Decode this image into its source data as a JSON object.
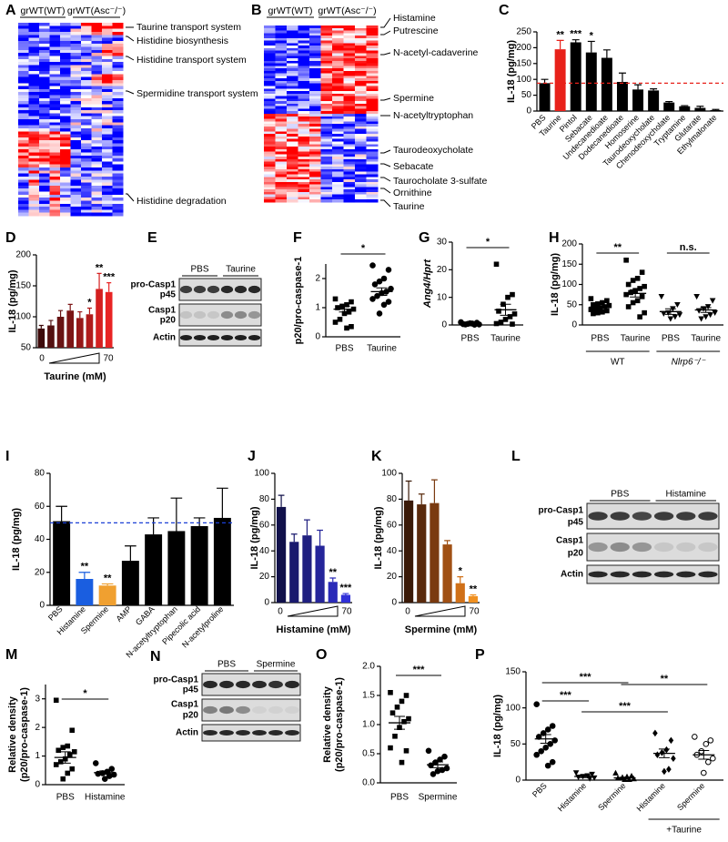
{
  "chart_data": [
    {
      "panel": "A",
      "type": "heatmap",
      "column_groups": [
        "grWT(WT)",
        "grWT(Asc⁻/⁻)"
      ],
      "row_labels": [
        "Taurine transport system",
        "Histidine biosynthesis",
        "Histidine transport system",
        "Spermidine transport system",
        "Histidine degradation"
      ]
    },
    {
      "panel": "B",
      "type": "heatmap",
      "column_groups": [
        "grWT(WT)",
        "grWT(Asc⁻/⁻)"
      ],
      "row_labels": [
        "Histamine",
        "Putrescine",
        "N-acetyl-cadaverine",
        "Spermine",
        "N-acetyltryptophan",
        "Taurodeoxycholate",
        "Sebacate",
        "Taurocholate 3-sulfate",
        "Ornithine",
        "Taurine"
      ]
    },
    {
      "panel": "C",
      "type": "bar",
      "ylabel": "IL-18 (pg/mg)",
      "categories": [
        "PBS",
        "Taurine",
        "Pintol",
        "Sebacate",
        "Undecanedioate",
        "Dodecanedioate",
        "Homoserine",
        "Taurodeoxycholate",
        "Chenodeoxycholate",
        "Tryptamine",
        "Glutarate",
        "Ethylmalonate"
      ],
      "values": [
        88,
        195,
        217,
        185,
        168,
        92,
        68,
        65,
        27,
        15,
        10,
        3
      ],
      "errors": [
        12,
        28,
        8,
        35,
        25,
        28,
        15,
        5,
        3,
        2,
        5,
        2
      ],
      "colors": [
        "#000000",
        "#e8211a",
        "#000000",
        "#000000",
        "#000000",
        "#000000",
        "#000000",
        "#000000",
        "#000000",
        "#000000",
        "#000000",
        "#000000"
      ],
      "stars": [
        null,
        "**",
        "***",
        "*",
        null,
        null,
        null,
        null,
        null,
        null,
        null,
        null
      ],
      "reference_line": {
        "value": 88,
        "color": "#e8211a"
      },
      "ylim": [
        0,
        250
      ],
      "yticks": [
        0,
        50,
        100,
        150,
        200,
        250
      ]
    },
    {
      "panel": "D",
      "type": "bar",
      "ylabel": "IL-18 (pg/mg)",
      "xlabel": "Taurine (mM)",
      "dose_labels": [
        "0",
        "70"
      ],
      "categories": [
        null,
        null,
        null,
        null,
        null,
        null,
        null,
        null
      ],
      "values": [
        81,
        86,
        100,
        110,
        98,
        104,
        145,
        140
      ],
      "errors": [
        5,
        8,
        10,
        10,
        10,
        10,
        25,
        15
      ],
      "colors": [
        "#3d0a0a",
        "#531010",
        "#681313",
        "#7c1515",
        "#961818",
        "#b01c1c",
        "#d42020",
        "#e82424"
      ],
      "stars": [
        null,
        null,
        null,
        null,
        null,
        "*",
        "**",
        "***"
      ],
      "ylim": [
        50,
        200
      ],
      "yticks": [
        50,
        100,
        150,
        200
      ]
    },
    {
      "panel": "E",
      "type": "blot",
      "lanes": [
        "PBS",
        "Taurine"
      ],
      "bands": [
        "pro-Casp1",
        "p45",
        "Casp1",
        "p20",
        "Actin"
      ]
    },
    {
      "panel": "F",
      "type": "dot",
      "ylabel": "p20/pro-caspase-1",
      "categories": [
        "PBS",
        "Taurine"
      ],
      "groups": [
        [
          1.3,
          1.2,
          1.1,
          1.05,
          1.0,
          0.95,
          0.85,
          0.8,
          0.6,
          0.5,
          0.35,
          0.3
        ],
        [
          2.45,
          2.3,
          2.0,
          1.9,
          1.8,
          1.65,
          1.55,
          1.5,
          1.4,
          1.3,
          1.2,
          1.1,
          0.8
        ]
      ],
      "means": [
        0.95,
        1.55
      ],
      "sems": [
        0.1,
        0.13
      ],
      "markers": [
        "square",
        "circle"
      ],
      "significance": [
        "*"
      ],
      "ylim": [
        0,
        2.5
      ],
      "yticks": [
        0,
        1,
        2
      ]
    },
    {
      "panel": "G",
      "type": "dot",
      "ylabel": "Ang4/Hprt",
      "categories": [
        "PBS",
        "Taurine"
      ],
      "groups": [
        [
          1.0,
          0.8,
          0.5,
          0.4,
          0.3,
          0.2,
          0.1,
          0.6,
          0.2
        ],
        [
          22,
          11,
          10,
          7.5,
          5,
          4,
          3,
          2,
          1,
          0.5,
          0.3
        ]
      ],
      "means": [
        0.5,
        5.5
      ],
      "sems": [
        0.1,
        2
      ],
      "markers": [
        "circle",
        "square"
      ],
      "significance": [
        "*"
      ],
      "ylim": [
        0,
        30
      ],
      "yticks": [
        0,
        10,
        20,
        30
      ]
    },
    {
      "panel": "H",
      "type": "dot",
      "ylabel": "IL-18 (pg/mg)",
      "categories": [
        "PBS",
        "Taurine",
        "PBS",
        "Taurine"
      ],
      "group_labels": [
        "WT",
        "Nlrp6⁻/⁻"
      ],
      "groups": [
        [
          65,
          60,
          55,
          52,
          50,
          48,
          45,
          42,
          40,
          38,
          35,
          32,
          30,
          28
        ],
        [
          160,
          130,
          115,
          110,
          100,
          95,
          90,
          85,
          80,
          75,
          70,
          60,
          55,
          45,
          30,
          20
        ],
        [
          70,
          50,
          40,
          30,
          28,
          25,
          20,
          15
        ],
        [
          70,
          60,
          45,
          40,
          35,
          30,
          25,
          20,
          15
        ]
      ],
      "means": [
        44,
        78,
        33,
        37
      ],
      "sems": [
        3,
        9,
        7,
        6
      ],
      "markers": [
        "square",
        "square",
        "triangle-down",
        "triangle-down"
      ],
      "significance": [
        "**",
        "n.s."
      ],
      "ylim": [
        0,
        200
      ],
      "yticks": [
        0,
        50,
        100,
        150,
        200
      ]
    },
    {
      "panel": "I",
      "type": "bar",
      "ylabel": "IL-18 (pg/mg)",
      "categories": [
        "PBS",
        "Histamine",
        "Spermine",
        "AMP",
        "GABA",
        "N-acetyltryptophan",
        "Pipecolic acid",
        "N-acetylproline"
      ],
      "values": [
        51,
        16,
        12,
        27,
        43,
        45,
        48,
        53
      ],
      "errors": [
        9,
        4,
        1,
        9,
        10,
        20,
        5,
        18
      ],
      "colors": [
        "#000000",
        "#1a5ee0",
        "#f0a030",
        "#000000",
        "#000000",
        "#000000",
        "#000000",
        "#000000"
      ],
      "stars": [
        null,
        "**",
        "**",
        null,
        null,
        null,
        null,
        null
      ],
      "reference_line": {
        "value": 50,
        "color": "#1a3fd6"
      },
      "ylim": [
        0,
        80
      ],
      "yticks": [
        0,
        20,
        40,
        60,
        80
      ]
    },
    {
      "panel": "J",
      "type": "bar",
      "ylabel": "IL-18 (pg/mg)",
      "xlabel": "Histamine (mM)",
      "dose_labels": [
        "0",
        "70"
      ],
      "categories": [
        null,
        null,
        null,
        null,
        null,
        null
      ],
      "values": [
        74,
        47,
        52,
        44,
        16,
        6
      ],
      "errors": [
        9,
        6,
        12,
        12,
        3,
        1
      ],
      "colors": [
        "#10104a",
        "#1a1a6e",
        "#202080",
        "#25259a",
        "#2a2ab8",
        "#3030d8"
      ],
      "stars": [
        null,
        null,
        null,
        null,
        "**",
        "***"
      ],
      "ylim": [
        0,
        100
      ],
      "yticks": [
        0,
        20,
        40,
        60,
        80,
        100
      ]
    },
    {
      "panel": "K",
      "type": "bar",
      "ylabel": "IL-18 (pg/mg)",
      "xlabel": "Spermine (mM)",
      "dose_labels": [
        "0",
        "70"
      ],
      "categories": [
        null,
        null,
        null,
        null,
        null,
        null
      ],
      "values": [
        79,
        76,
        77,
        45,
        15,
        5
      ],
      "errors": [
        15,
        8,
        18,
        3,
        5,
        1
      ],
      "colors": [
        "#3a1a08",
        "#5a2a0c",
        "#7a3a10",
        "#a05014",
        "#d07018",
        "#f09020"
      ],
      "stars": [
        null,
        null,
        null,
        null,
        "*",
        "**"
      ],
      "ylim": [
        0,
        100
      ],
      "yticks": [
        0,
        20,
        40,
        60,
        80,
        100
      ]
    },
    {
      "panel": "L",
      "type": "blot",
      "lanes": [
        "PBS",
        "Histamine"
      ],
      "bands": [
        "pro-Casp1",
        "p45",
        "Casp1",
        "p20",
        "Actin"
      ]
    },
    {
      "panel": "M",
      "type": "dot",
      "ylabel": [
        "Relative density",
        "(p20/pro-caspase-1)"
      ],
      "categories": [
        "PBS",
        "Histamine"
      ],
      "groups": [
        [
          2.95,
          1.9,
          1.35,
          1.3,
          1.2,
          1.15,
          1.05,
          0.9,
          0.8,
          0.7,
          0.55,
          0.4,
          0.2
        ],
        [
          0.75,
          0.55,
          0.45,
          0.4,
          0.38,
          0.35,
          0.3,
          0.2
        ]
      ],
      "means": [
        0.95,
        0.42
      ],
      "sems": [
        0.2,
        0.06
      ],
      "markers": [
        "square",
        "circle"
      ],
      "significance": [
        "*"
      ],
      "ylim": [
        0,
        3.5
      ],
      "yticks": [
        0,
        1,
        2,
        3
      ]
    },
    {
      "panel": "N",
      "type": "blot",
      "lanes": [
        "PBS",
        "Spermine"
      ],
      "bands": [
        "pro-Casp1",
        "p45",
        "Casp1",
        "p20",
        "Actin"
      ]
    },
    {
      "panel": "O",
      "type": "dot",
      "ylabel": [
        "Relative density",
        "(p20/pro-caspase-1)"
      ],
      "categories": [
        "PBS",
        "Spermine"
      ],
      "groups": [
        [
          1.55,
          1.5,
          1.4,
          1.3,
          1.2,
          1.1,
          1.05,
          0.95,
          0.8,
          0.6,
          0.55,
          0.35
        ],
        [
          0.55,
          0.45,
          0.4,
          0.35,
          0.3,
          0.25,
          0.22,
          0.2,
          0.15
        ]
      ],
      "means": [
        1.03,
        0.31
      ],
      "sems": [
        0.11,
        0.05
      ],
      "markers": [
        "square",
        "circle"
      ],
      "significance": [
        "***"
      ],
      "ylim": [
        0,
        2.0
      ],
      "yticks": [
        {
          "value": 0,
          "label": "0.0"
        },
        {
          "value": 0.5,
          "label": "0.5"
        },
        {
          "value": 1,
          "label": "1.0"
        },
        {
          "value": 1.5,
          "label": "1.5"
        },
        {
          "value": 2,
          "label": "2.0"
        }
      ]
    },
    {
      "panel": "P",
      "type": "dot",
      "ylabel": "IL-18 (pg/mg)",
      "categories": [
        "PBS",
        "Histamine",
        "Spermine",
        "Histamine",
        "Spermine"
      ],
      "group_labels": [
        "+Taurine"
      ],
      "groups": [
        [
          105,
          75,
          70,
          65,
          60,
          55,
          50,
          45,
          40,
          35,
          25,
          20
        ],
        [
          10,
          8,
          6,
          5,
          4,
          3,
          2
        ],
        [
          10,
          6,
          5,
          4,
          3,
          2,
          1,
          1
        ],
        [
          65,
          55,
          42,
          38,
          35,
          30,
          15,
          12
        ],
        [
          60,
          55,
          50,
          40,
          35,
          30,
          25,
          10
        ]
      ],
      "means": [
        57,
        5,
        3,
        37,
        35
      ],
      "sems": [
        6,
        1.5,
        1,
        6,
        6
      ],
      "markers": [
        "circle",
        "triangle-down",
        "triangle",
        "diamond",
        "open-circle"
      ],
      "significance": [
        "***",
        "***",
        "***",
        "**"
      ],
      "ylim": [
        0,
        150
      ],
      "yticks": [
        0,
        50,
        100,
        150
      ]
    }
  ]
}
